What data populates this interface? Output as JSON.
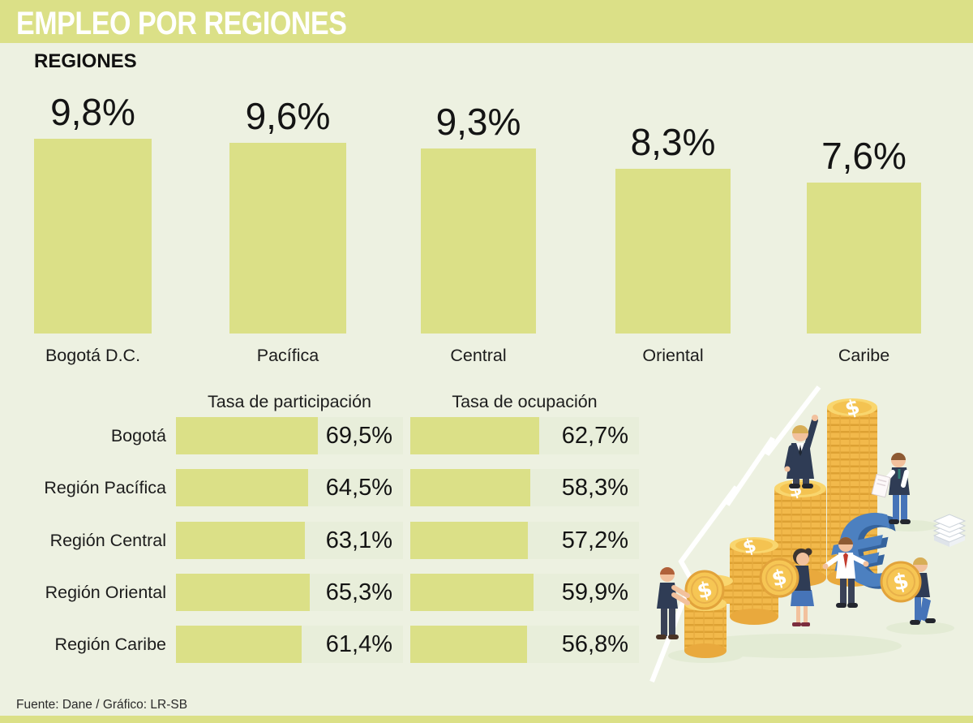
{
  "header": {
    "title": "EMPLEO POR REGIONES"
  },
  "section": {
    "label": "REGIONES"
  },
  "chart_data": [
    {
      "type": "bar",
      "title": "EMPLEO POR REGIONES",
      "categories": [
        "Bogotá D.C.",
        "Pacífica",
        "Central",
        "Oriental",
        "Caribe"
      ],
      "values": [
        9.8,
        9.6,
        9.3,
        8.3,
        7.6
      ],
      "value_labels": [
        "9,8%",
        "9,6%",
        "9,3%",
        "8,3%",
        "7,6%"
      ],
      "ylim": [
        0,
        10
      ],
      "grid": false,
      "legend": "none",
      "bar_color": "#dbe087"
    },
    {
      "type": "table",
      "columns": [
        "Tasa de participación",
        "Tasa de ocupación"
      ],
      "row_labels": [
        "Bogotá",
        "Región Pacífica",
        "Región Central",
        "Región Oriental",
        "Región Caribe"
      ],
      "series": [
        {
          "name": "Tasa de participación",
          "values": [
            69.5,
            64.5,
            63.1,
            65.3,
            61.4
          ],
          "labels": [
            "69,5%",
            "64,5%",
            "63,1%",
            "65,3%",
            "61,4%"
          ]
        },
        {
          "name": "Tasa de ocupación",
          "values": [
            62.7,
            58.3,
            57.2,
            59.9,
            56.8
          ],
          "labels": [
            "62,7%",
            "58,3%",
            "57,2%",
            "59,9%",
            "56,8%"
          ]
        }
      ]
    }
  ],
  "footer": {
    "source": "Fuente: Dane / Gráfico: LR-SB"
  },
  "colors": {
    "accent_green": "#dbe087",
    "background": "#edf1e1",
    "bar_track": "#e8eeda",
    "title_text": "#ffffff",
    "body_text": "#1c1c1c",
    "coin_gold": "#f2b94b",
    "coin_top": "#f9d66e",
    "euro_blue": "#4c80c0",
    "suit_navy": "#2f3c55"
  },
  "illustration": {
    "name": "people-growing-coin-stacks"
  }
}
